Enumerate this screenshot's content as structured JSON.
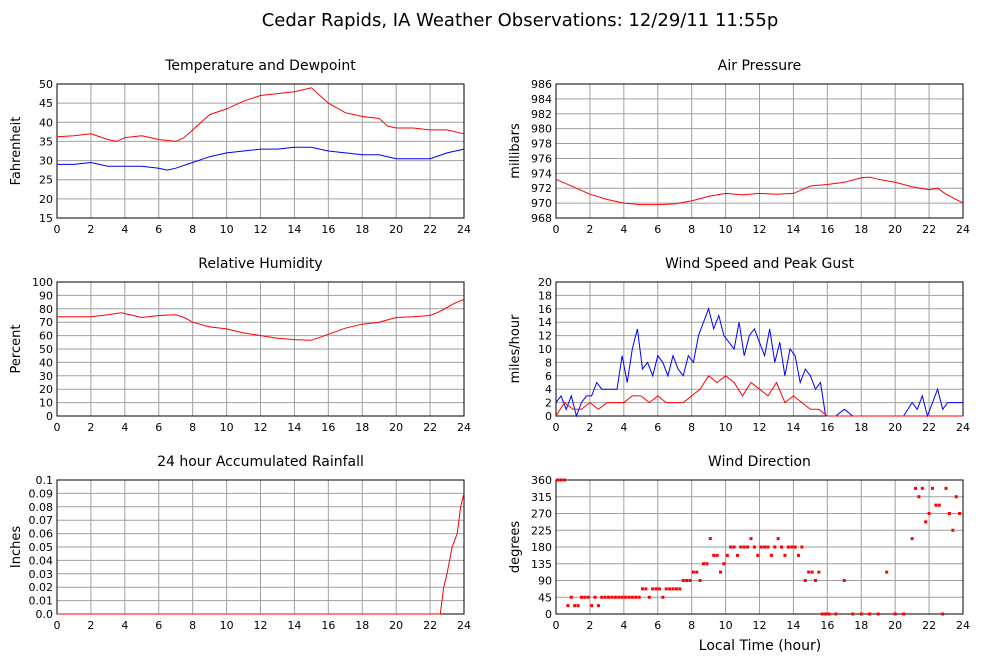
{
  "page": {
    "title": "Cedar Rapids, IA Weather Observations: 12/29/11 11:55p",
    "footer_xlabel": "Local Time (hour)"
  },
  "colors": {
    "red": "#ff0000",
    "blue": "#0000ff"
  },
  "chart_data": [
    {
      "id": "temp",
      "type": "line",
      "title": "Temperature and Dewpoint",
      "xlabel": "",
      "ylabel": "Fahrenheit",
      "xlim": [
        0,
        24
      ],
      "ylim": [
        15,
        50
      ],
      "yticks": [
        15,
        20,
        25,
        30,
        35,
        40,
        45,
        50
      ],
      "xticks": [
        0,
        2,
        4,
        6,
        8,
        10,
        12,
        14,
        16,
        18,
        20,
        22,
        24
      ],
      "grid": true,
      "series": [
        {
          "color": "#ff0000",
          "x": [
            0,
            1,
            2,
            3,
            3.5,
            4,
            5,
            6,
            7,
            7.5,
            8,
            9,
            10,
            11,
            12,
            13,
            14,
            15,
            16,
            17,
            18,
            19,
            19.5,
            20,
            21,
            22,
            23,
            24
          ],
          "y": [
            36.2,
            36.5,
            37,
            35.5,
            35,
            36,
            36.5,
            35.5,
            35,
            36,
            38,
            42,
            43.5,
            45.5,
            47,
            47.5,
            48,
            49,
            45,
            42.5,
            41.5,
            41,
            39,
            38.5,
            38.5,
            38,
            38,
            37
          ]
        },
        {
          "color": "#0000ff",
          "x": [
            0,
            1,
            2,
            3,
            4,
            5,
            6,
            6.5,
            7,
            8,
            9,
            10,
            11,
            12,
            13,
            14,
            15,
            16,
            17,
            18,
            19,
            19.5,
            20,
            21,
            22,
            23,
            24
          ],
          "y": [
            29,
            29,
            29.5,
            28.5,
            28.5,
            28.5,
            28,
            27.5,
            28,
            29.5,
            31,
            32,
            32.5,
            33,
            33,
            33.5,
            33.5,
            32.5,
            32,
            31.5,
            31.5,
            31,
            30.5,
            30.5,
            30.5,
            32,
            33
          ]
        }
      ]
    },
    {
      "id": "pressure",
      "type": "line",
      "title": "Air Pressure",
      "xlabel": "",
      "ylabel": "millibars",
      "xlim": [
        0,
        24
      ],
      "ylim": [
        968,
        986
      ],
      "yticks": [
        968,
        970,
        972,
        974,
        976,
        978,
        980,
        982,
        984,
        986
      ],
      "xticks": [
        0,
        2,
        4,
        6,
        8,
        10,
        12,
        14,
        16,
        18,
        20,
        22,
        24
      ],
      "grid": true,
      "series": [
        {
          "color": "#ff0000",
          "x": [
            0,
            1,
            2,
            3,
            4,
            5,
            6,
            7,
            8,
            9,
            10,
            11,
            12,
            13,
            14,
            15,
            16,
            17,
            18,
            18.5,
            19,
            20,
            21,
            22,
            22.5,
            23,
            24
          ],
          "y": [
            973.2,
            972.2,
            971.2,
            970.5,
            970,
            969.8,
            969.8,
            969.9,
            970.3,
            970.9,
            971.3,
            971.1,
            971.3,
            971.2,
            971.3,
            972.3,
            972.5,
            972.8,
            973.4,
            973.5,
            973.2,
            972.8,
            972.2,
            971.8,
            972,
            971.2,
            970
          ]
        }
      ]
    },
    {
      "id": "humidity",
      "type": "line",
      "title": "Relative Humidity",
      "xlabel": "",
      "ylabel": "Percent",
      "xlim": [
        0,
        24
      ],
      "ylim": [
        0,
        100
      ],
      "yticks": [
        0,
        10,
        20,
        30,
        40,
        50,
        60,
        70,
        80,
        90,
        100
      ],
      "xticks": [
        0,
        2,
        4,
        6,
        8,
        10,
        12,
        14,
        16,
        18,
        20,
        22,
        24
      ],
      "grid": true,
      "series": [
        {
          "color": "#ff0000",
          "x": [
            0,
            1,
            2,
            3,
            3.8,
            4.5,
            5,
            6,
            7,
            7.5,
            8,
            9,
            10,
            11,
            12,
            13,
            14,
            15,
            16,
            17,
            18,
            19,
            20,
            21,
            22,
            22.5,
            23,
            23.5,
            24
          ],
          "y": [
            74,
            74,
            74,
            75.5,
            77,
            75,
            73.5,
            75,
            75.5,
            73.5,
            70,
            66.5,
            65,
            62,
            60,
            58,
            57,
            56.5,
            61,
            65.5,
            68.5,
            70,
            73.5,
            74,
            75,
            77.5,
            81,
            84.5,
            87
          ]
        }
      ]
    },
    {
      "id": "wind",
      "type": "line",
      "title": "Wind Speed and Peak Gust",
      "xlabel": "",
      "ylabel": "miles/hour",
      "xlim": [
        0,
        24
      ],
      "ylim": [
        0,
        20
      ],
      "yticks": [
        0,
        2,
        4,
        6,
        8,
        10,
        12,
        14,
        16,
        18,
        20
      ],
      "xticks": [
        0,
        2,
        4,
        6,
        8,
        10,
        12,
        14,
        16,
        18,
        20,
        22,
        24
      ],
      "grid": true,
      "series": [
        {
          "color": "#0000ff",
          "x": [
            0,
            0.3,
            0.6,
            0.9,
            1.2,
            1.5,
            1.8,
            2.1,
            2.4,
            2.7,
            3,
            3.3,
            3.6,
            3.9,
            4.2,
            4.5,
            4.8,
            5.1,
            5.4,
            5.7,
            6,
            6.3,
            6.6,
            6.9,
            7.2,
            7.5,
            7.8,
            8.1,
            8.4,
            8.7,
            9,
            9.3,
            9.6,
            9.9,
            10.2,
            10.5,
            10.8,
            11.1,
            11.4,
            11.7,
            12,
            12.3,
            12.6,
            12.9,
            13.2,
            13.5,
            13.8,
            14.1,
            14.4,
            14.7,
            15,
            15.3,
            15.6,
            15.9,
            16.5,
            17,
            17.5,
            18,
            19,
            20,
            20.5,
            21,
            21.3,
            21.6,
            21.9,
            22.2,
            22.5,
            22.8,
            23.1,
            23.4,
            24
          ],
          "y": [
            2,
            3,
            1,
            3,
            0,
            2,
            3,
            3,
            5,
            4,
            4,
            4,
            4,
            9,
            5,
            10,
            13,
            7,
            8,
            6,
            9,
            8,
            6,
            9,
            7,
            6,
            9,
            8,
            12,
            14,
            16,
            13,
            15,
            12,
            11,
            10,
            14,
            9,
            12,
            13,
            11,
            9,
            13,
            8,
            11,
            6,
            10,
            9,
            5,
            7,
            6,
            4,
            5,
            0,
            0,
            1,
            0,
            0,
            0,
            0,
            0,
            2,
            1,
            3,
            0,
            2,
            4,
            1,
            2,
            2,
            2
          ]
        },
        {
          "color": "#ff0000",
          "x": [
            0,
            0.5,
            1,
            1.5,
            2,
            2.5,
            3,
            3.5,
            4,
            4.5,
            5,
            5.5,
            6,
            6.5,
            7,
            7.5,
            8,
            8.5,
            9,
            9.5,
            10,
            10.5,
            11,
            11.5,
            12,
            12.5,
            13,
            13.5,
            14,
            14.5,
            15,
            15.5,
            16,
            24
          ],
          "y": [
            0,
            2,
            1,
            1,
            2,
            1,
            2,
            2,
            2,
            3,
            3,
            2,
            3,
            2,
            2,
            2,
            3,
            4,
            6,
            5,
            6,
            5,
            3,
            5,
            4,
            3,
            5,
            2,
            3,
            2,
            1,
            1,
            0,
            0
          ]
        }
      ]
    },
    {
      "id": "rain",
      "type": "line",
      "title": "24 hour Accumulated Rainfall",
      "xlabel": "",
      "ylabel": "Inches",
      "xlim": [
        0,
        24
      ],
      "ylim": [
        0,
        0.1
      ],
      "yticks": [
        0.0,
        0.01,
        0.02,
        0.03,
        0.04,
        0.05,
        0.06,
        0.07,
        0.08,
        0.09,
        0.1
      ],
      "ytick_labels": [
        "0.0",
        "0.01",
        "0.02",
        "0.03",
        "0.04",
        "0.05",
        "0.06",
        "0.07",
        "0.08",
        "0.09",
        "0.1"
      ],
      "xticks": [
        0,
        2,
        4,
        6,
        8,
        10,
        12,
        14,
        16,
        18,
        20,
        22,
        24
      ],
      "grid": true,
      "series": [
        {
          "color": "#ff0000",
          "x": [
            0,
            22.6,
            22.8,
            23.0,
            23.3,
            23.6,
            23.8,
            24
          ],
          "y": [
            0,
            0,
            0.02,
            0.03,
            0.05,
            0.06,
            0.08,
            0.09
          ]
        }
      ]
    },
    {
      "id": "direction",
      "type": "scatter",
      "title": "Wind Direction",
      "xlabel": "Local Time (hour)",
      "ylabel": "degrees",
      "xlim": [
        0,
        24
      ],
      "ylim": [
        0,
        360
      ],
      "yticks": [
        0,
        45,
        90,
        135,
        180,
        225,
        270,
        315,
        360
      ],
      "xticks": [
        0,
        2,
        4,
        6,
        8,
        10,
        12,
        14,
        16,
        18,
        20,
        22,
        24
      ],
      "grid": true,
      "series": [
        {
          "color": "#ff0000",
          "x": [
            0.1,
            0.3,
            0.5,
            0.7,
            0.9,
            1.1,
            1.3,
            1.5,
            1.7,
            1.9,
            2.1,
            2.3,
            2.5,
            2.7,
            2.9,
            3.1,
            3.3,
            3.5,
            3.7,
            3.9,
            4.1,
            4.3,
            4.5,
            4.7,
            4.9,
            5.1,
            5.3,
            5.5,
            5.7,
            5.9,
            6.1,
            6.3,
            6.5,
            6.7,
            6.9,
            7.1,
            7.3,
            7.5,
            7.7,
            7.9,
            8.1,
            8.3,
            8.5,
            8.7,
            8.9,
            9.1,
            9.3,
            9.5,
            9.7,
            9.9,
            10.1,
            10.3,
            10.5,
            10.7,
            10.9,
            11.1,
            11.3,
            11.5,
            11.7,
            11.9,
            12.1,
            12.3,
            12.5,
            12.7,
            12.9,
            13.1,
            13.3,
            13.5,
            13.7,
            13.9,
            14.1,
            14.3,
            14.5,
            14.7,
            14.9,
            15.1,
            15.3,
            15.5,
            15.7,
            15.9,
            16.1,
            16.5,
            17,
            17.5,
            18,
            18.5,
            19,
            19.5,
            20,
            20.5,
            21,
            21.2,
            21.4,
            21.6,
            21.8,
            22,
            22.2,
            22.4,
            22.6,
            22.8,
            23,
            23.2,
            23.4,
            23.6,
            23.8
          ],
          "y": [
            360,
            360,
            360,
            22.5,
            45,
            22.5,
            22.5,
            45,
            45,
            45,
            22.5,
            45,
            22.5,
            45,
            45,
            45,
            45,
            45,
            45,
            45,
            45,
            45,
            45,
            45,
            45,
            67.5,
            67.5,
            45,
            67.5,
            67.5,
            67.5,
            45,
            67.5,
            67.5,
            67.5,
            67.5,
            67.5,
            90,
            90,
            90,
            112.5,
            112.5,
            90,
            135,
            135,
            202.5,
            157.5,
            157.5,
            112.5,
            135,
            157.5,
            180,
            180,
            157.5,
            180,
            180,
            180,
            202.5,
            180,
            157.5,
            180,
            180,
            180,
            157.5,
            180,
            202.5,
            180,
            157.5,
            180,
            180,
            180,
            157.5,
            180,
            90,
            112.5,
            112.5,
            90,
            112.5,
            0,
            0,
            0,
            0,
            90,
            0,
            0,
            0,
            0,
            112.5,
            0,
            0,
            202.5,
            337.5,
            315,
            337.5,
            247.5,
            270,
            337.5,
            292.5,
            292.5,
            0,
            337.5,
            270,
            225,
            315,
            270
          ]
        }
      ]
    }
  ]
}
